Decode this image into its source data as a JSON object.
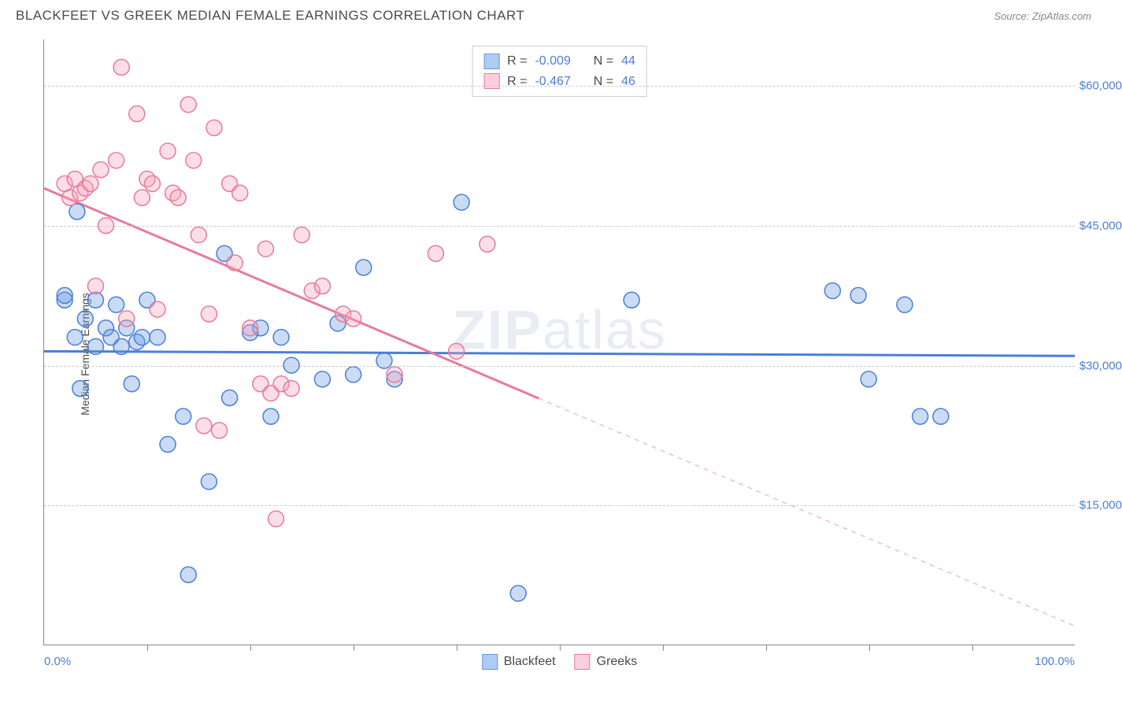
{
  "title": "BLACKFEET VS GREEK MEDIAN FEMALE EARNINGS CORRELATION CHART",
  "source": "Source: ZipAtlas.com",
  "y_axis_label": "Median Female Earnings",
  "watermark": "ZIPatlas",
  "chart": {
    "type": "scatter_with_regression",
    "background_color": "#ffffff",
    "grid_color": "#cccccc",
    "axis_color": "#888888",
    "text_color": "#4a4a4a",
    "value_color": "#4a7fd8",
    "x_range": [
      0,
      100
    ],
    "y_range": [
      0,
      65000
    ],
    "y_gridlines": [
      15000,
      30000,
      45000,
      60000
    ],
    "y_tick_labels": [
      "$15,000",
      "$30,000",
      "$45,000",
      "$60,000"
    ],
    "x_ticks": [
      10,
      20,
      30,
      40,
      50,
      60,
      70,
      80,
      90
    ],
    "x_tick_labels": {
      "min": "0.0%",
      "max": "100.0%"
    },
    "marker_radius": 10,
    "marker_fill_opacity": 0.35,
    "marker_stroke_width": 1.5,
    "series": [
      {
        "name": "Blackfeet",
        "color": "#6699e0",
        "stroke": "#4a7fd8",
        "R": "-0.009",
        "N": "44",
        "regression": {
          "x1": 0,
          "y1": 31500,
          "x2": 100,
          "y2": 31000,
          "solid_until_x": 100
        },
        "points": [
          [
            2,
            37000
          ],
          [
            2,
            37500
          ],
          [
            3,
            33000
          ],
          [
            3.2,
            46500
          ],
          [
            3.5,
            27500
          ],
          [
            4,
            35000
          ],
          [
            5,
            37000
          ],
          [
            5,
            32000
          ],
          [
            6,
            34000
          ],
          [
            6.5,
            33000
          ],
          [
            7,
            36500
          ],
          [
            7.5,
            32000
          ],
          [
            8,
            34000
          ],
          [
            8.5,
            28000
          ],
          [
            9,
            32500
          ],
          [
            9.5,
            33000
          ],
          [
            10,
            37000
          ],
          [
            11,
            33000
          ],
          [
            12,
            21500
          ],
          [
            13.5,
            24500
          ],
          [
            14,
            7500
          ],
          [
            16,
            17500
          ],
          [
            17.5,
            42000
          ],
          [
            18,
            26500
          ],
          [
            20,
            33500
          ],
          [
            21,
            34000
          ],
          [
            22,
            24500
          ],
          [
            23,
            33000
          ],
          [
            24,
            30000
          ],
          [
            27,
            28500
          ],
          [
            28.5,
            34500
          ],
          [
            30,
            29000
          ],
          [
            31,
            40500
          ],
          [
            33,
            30500
          ],
          [
            34,
            28500
          ],
          [
            40.5,
            47500
          ],
          [
            57,
            37000
          ],
          [
            76.5,
            38000
          ],
          [
            79,
            37500
          ],
          [
            80,
            28500
          ],
          [
            83.5,
            36500
          ],
          [
            85,
            24500
          ],
          [
            87,
            24500
          ],
          [
            46,
            5500
          ]
        ]
      },
      {
        "name": "Greeks",
        "color": "#f5a3b8",
        "stroke": "#e87a9a",
        "R": "-0.467",
        "N": "46",
        "regression": {
          "x1": 0,
          "y1": 49000,
          "x2": 100,
          "y2": 2000,
          "solid_until_x": 48
        },
        "points": [
          [
            2,
            49500
          ],
          [
            2.5,
            48000
          ],
          [
            3,
            50000
          ],
          [
            3.5,
            48500
          ],
          [
            4,
            49000
          ],
          [
            4.5,
            49500
          ],
          [
            5,
            38500
          ],
          [
            5.5,
            51000
          ],
          [
            6,
            45000
          ],
          [
            7,
            52000
          ],
          [
            7.5,
            62000
          ],
          [
            8,
            35000
          ],
          [
            9,
            57000
          ],
          [
            9.5,
            48000
          ],
          [
            10,
            50000
          ],
          [
            10.5,
            49500
          ],
          [
            11,
            36000
          ],
          [
            12,
            53000
          ],
          [
            12.5,
            48500
          ],
          [
            13,
            48000
          ],
          [
            14,
            58000
          ],
          [
            14.5,
            52000
          ],
          [
            15,
            44000
          ],
          [
            15.5,
            23500
          ],
          [
            16,
            35500
          ],
          [
            16.5,
            55500
          ],
          [
            17,
            23000
          ],
          [
            18,
            49500
          ],
          [
            18.5,
            41000
          ],
          [
            19,
            48500
          ],
          [
            20,
            34000
          ],
          [
            21,
            28000
          ],
          [
            21.5,
            42500
          ],
          [
            22,
            27000
          ],
          [
            22.5,
            13500
          ],
          [
            23,
            28000
          ],
          [
            24,
            27500
          ],
          [
            25,
            44000
          ],
          [
            26,
            38000
          ],
          [
            27,
            38500
          ],
          [
            29,
            35500
          ],
          [
            30,
            35000
          ],
          [
            34,
            29000
          ],
          [
            38,
            42000
          ],
          [
            40,
            31500
          ],
          [
            43,
            43000
          ]
        ]
      }
    ]
  },
  "stats_legend": [
    {
      "swatch": "#aeccf2",
      "border": "#6699e0",
      "R_label": "R =",
      "R": "-0.009",
      "N_label": "N =",
      "N": "44"
    },
    {
      "swatch": "#fbd0dc",
      "border": "#e87a9a",
      "R_label": "R =",
      "R": "-0.467",
      "N_label": "N =",
      "N": "46"
    }
  ],
  "bottom_legend": [
    {
      "swatch": "#aeccf2",
      "border": "#6699e0",
      "label": "Blackfeet"
    },
    {
      "swatch": "#fbd0dc",
      "border": "#e87a9a",
      "label": "Greeks"
    }
  ]
}
